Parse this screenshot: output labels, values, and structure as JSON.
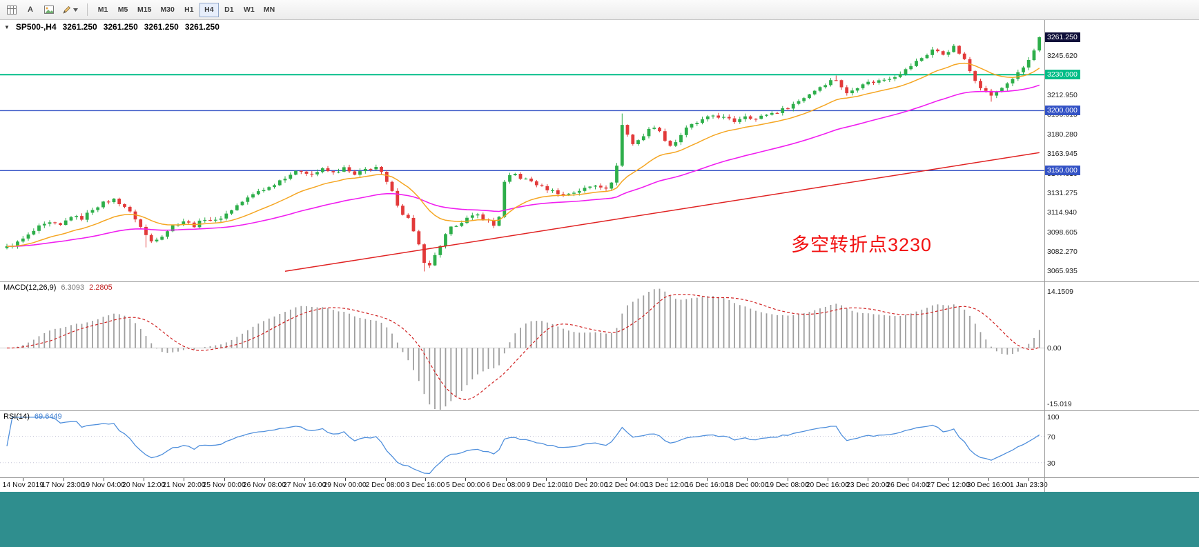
{
  "toolbar": {
    "tools": [
      {
        "name": "chart-grid",
        "label": ""
      },
      {
        "name": "text-tool",
        "label": "A"
      },
      {
        "name": "image-tool",
        "label": ""
      },
      {
        "name": "draw-tool",
        "label": ""
      }
    ],
    "timeframes": [
      "M1",
      "M5",
      "M15",
      "M30",
      "H1",
      "H4",
      "D1",
      "W1",
      "MN"
    ],
    "active_timeframe": "H4"
  },
  "chart": {
    "collapse_glyph": "▼",
    "symbol": "SP500-,H4",
    "ohlc": [
      "3261.250",
      "3261.250",
      "3261.250",
      "3261.250"
    ],
    "annotation": {
      "text": "多空转折点3230",
      "color": "#f21111"
    },
    "price_axis_labels": [
      "3261.955",
      "3245.620",
      "3229.285",
      "3212.950",
      "3196.615",
      "3180.280",
      "3163.945",
      "3147.610",
      "3131.275",
      "3114.940",
      "3098.605",
      "3082.270",
      "3065.935"
    ],
    "badges": [
      {
        "text": "3261.250",
        "type": "current",
        "price": 3261.25
      },
      {
        "text": "3230.000",
        "type": "green",
        "price": 3230
      },
      {
        "text": "3200.000",
        "type": "blue",
        "price": 3200
      },
      {
        "text": "3150.000",
        "type": "blue",
        "price": 3150
      }
    ],
    "time_labels": [
      "14 Nov 2019",
      "17 Nov 23:00",
      "19 Nov 04:00",
      "20 Nov 12:00",
      "21 Nov 20:00",
      "25 Nov 00:00",
      "26 Nov 08:00",
      "27 Nov 16:00",
      "29 Nov 00:00",
      "2 Dec 08:00",
      "3 Dec 16:00",
      "5 Dec 00:00",
      "6 Dec 08:00",
      "9 Dec 12:00",
      "10 Dec 20:00",
      "12 Dec 04:00",
      "13 Dec 12:00",
      "16 Dec 16:00",
      "18 Dec 00:00",
      "19 Dec 08:00",
      "20 Dec 16:00",
      "23 Dec 20:00",
      "26 Dec 04:00",
      "27 Dec 12:00",
      "30 Dec 16:00",
      "1 Jan 23:30"
    ]
  },
  "chart_data": {
    "type": "candlestick",
    "symbol": "SP500-",
    "timeframe": "H4",
    "bars": 194,
    "wiggle": 1.3,
    "price_range": [
      3061,
      3267
    ],
    "current_price": 3261.25,
    "price_path": [
      [
        0,
        3086
      ],
      [
        2,
        3090
      ],
      [
        4,
        3096
      ],
      [
        6,
        3103
      ],
      [
        8,
        3106
      ],
      [
        10,
        3104
      ],
      [
        12,
        3112
      ],
      [
        14,
        3110
      ],
      [
        16,
        3118
      ],
      [
        18,
        3123
      ],
      [
        20,
        3126
      ],
      [
        22,
        3120
      ],
      [
        24,
        3110
      ],
      [
        26,
        3096
      ],
      [
        27,
        3091
      ],
      [
        29,
        3096
      ],
      [
        31,
        3104
      ],
      [
        33,
        3108
      ],
      [
        35,
        3104
      ],
      [
        37,
        3110
      ],
      [
        39,
        3108
      ],
      [
        41,
        3114
      ],
      [
        43,
        3121
      ],
      [
        45,
        3127
      ],
      [
        47,
        3133
      ],
      [
        49,
        3136
      ],
      [
        51,
        3142
      ],
      [
        53,
        3147
      ],
      [
        55,
        3150
      ],
      [
        57,
        3147
      ],
      [
        59,
        3151
      ],
      [
        61,
        3148
      ],
      [
        63,
        3152
      ],
      [
        65,
        3146
      ],
      [
        67,
        3151
      ],
      [
        69,
        3153
      ],
      [
        70,
        3148
      ],
      [
        71,
        3140
      ],
      [
        72,
        3132
      ],
      [
        73,
        3122
      ],
      [
        74,
        3114
      ],
      [
        75,
        3110
      ],
      [
        76,
        3100
      ],
      [
        77,
        3088
      ],
      [
        78,
        3072
      ],
      [
        79,
        3070
      ],
      [
        80,
        3080
      ],
      [
        81,
        3086
      ],
      [
        82,
        3096
      ],
      [
        83,
        3102
      ],
      [
        84,
        3105
      ],
      [
        86,
        3110
      ],
      [
        88,
        3113
      ],
      [
        90,
        3108
      ],
      [
        91,
        3104
      ],
      [
        92,
        3112
      ],
      [
        93,
        3140
      ],
      [
        94,
        3145
      ],
      [
        95,
        3147
      ],
      [
        96,
        3144
      ],
      [
        98,
        3141
      ],
      [
        100,
        3136
      ],
      [
        102,
        3133
      ],
      [
        104,
        3130
      ],
      [
        106,
        3132
      ],
      [
        108,
        3135
      ],
      [
        110,
        3138
      ],
      [
        112,
        3136
      ],
      [
        113,
        3139
      ],
      [
        114,
        3155
      ],
      [
        115,
        3188
      ],
      [
        116,
        3180
      ],
      [
        117,
        3172
      ],
      [
        118,
        3176
      ],
      [
        119,
        3179
      ],
      [
        120,
        3184
      ],
      [
        121,
        3187
      ],
      [
        122,
        3182
      ],
      [
        123,
        3176
      ],
      [
        124,
        3171
      ],
      [
        125,
        3174
      ],
      [
        126,
        3180
      ],
      [
        127,
        3185
      ],
      [
        128,
        3188
      ],
      [
        130,
        3192
      ],
      [
        132,
        3196
      ],
      [
        134,
        3194
      ],
      [
        136,
        3191
      ],
      [
        138,
        3196
      ],
      [
        140,
        3193
      ],
      [
        142,
        3197
      ],
      [
        144,
        3199
      ],
      [
        146,
        3203
      ],
      [
        148,
        3208
      ],
      [
        150,
        3214
      ],
      [
        152,
        3220
      ],
      [
        154,
        3225
      ],
      [
        155,
        3226
      ],
      [
        156,
        3220
      ],
      [
        157,
        3214
      ],
      [
        158,
        3217
      ],
      [
        159,
        3220
      ],
      [
        160,
        3223
      ],
      [
        162,
        3224
      ],
      [
        164,
        3226
      ],
      [
        166,
        3229
      ],
      [
        168,
        3234
      ],
      [
        170,
        3241
      ],
      [
        172,
        3247
      ],
      [
        173,
        3251
      ],
      [
        174,
        3249
      ],
      [
        175,
        3247
      ],
      [
        176,
        3250
      ],
      [
        177,
        3253
      ],
      [
        178,
        3248
      ],
      [
        179,
        3242
      ],
      [
        180,
        3233
      ],
      [
        181,
        3226
      ],
      [
        182,
        3220
      ],
      [
        183,
        3216
      ],
      [
        184,
        3213
      ],
      [
        185,
        3215
      ],
      [
        186,
        3219
      ],
      [
        187,
        3223
      ],
      [
        188,
        3227
      ],
      [
        189,
        3231
      ],
      [
        190,
        3236
      ],
      [
        191,
        3242
      ],
      [
        192,
        3250
      ],
      [
        193,
        3261.25
      ]
    ],
    "spikes": [
      {
        "bar": 26,
        "low": 3086
      },
      {
        "bar": 78,
        "low": 3065.9
      },
      {
        "bar": 115,
        "high": 3197.6
      },
      {
        "bar": 155,
        "high": 3229.3
      },
      {
        "bar": 177,
        "high": 3254.9
      },
      {
        "bar": 184,
        "low": 3207.5
      },
      {
        "bar": 193,
        "high": 3261.5
      }
    ],
    "levels": [
      {
        "price": 3230,
        "color": "green",
        "width": 2
      },
      {
        "price": 3200,
        "color": "blue",
        "width": 1.4
      },
      {
        "price": 3150,
        "color": "blue",
        "width": 1.4
      }
    ],
    "moving_averages": {
      "fast_period": 18,
      "mid_period": 55
    },
    "trend_line": {
      "from": [
        52,
        3066
      ],
      "to": [
        193,
        3165
      ]
    },
    "macd": {
      "label": "MACD(12,26,9)",
      "params": [
        12,
        26,
        9
      ],
      "values": [
        "6.3093",
        "2.2805"
      ],
      "axis_labels": [
        "14.1509",
        "0.00",
        "-15.019"
      ],
      "range": [
        -15.019,
        14.1509
      ]
    },
    "rsi": {
      "label": "RSI(14)",
      "period": 14,
      "value": "69.6449",
      "axis_labels": [
        "100",
        "70",
        "30"
      ],
      "level_lines": [
        70,
        30
      ],
      "scale": [
        12,
        102
      ]
    },
    "colors": {
      "up": "#2dae4a",
      "down": "#e23a3a",
      "ma_fast": "#f5a623",
      "ma_mid": "#f01ff0",
      "trend": "#e02222",
      "level_green": "#00bd87",
      "level_blue": "#3352c5",
      "macd_hist": "#9e9e9e",
      "macd_signal": "#d02020",
      "rsi": "#4f8fdc"
    }
  }
}
